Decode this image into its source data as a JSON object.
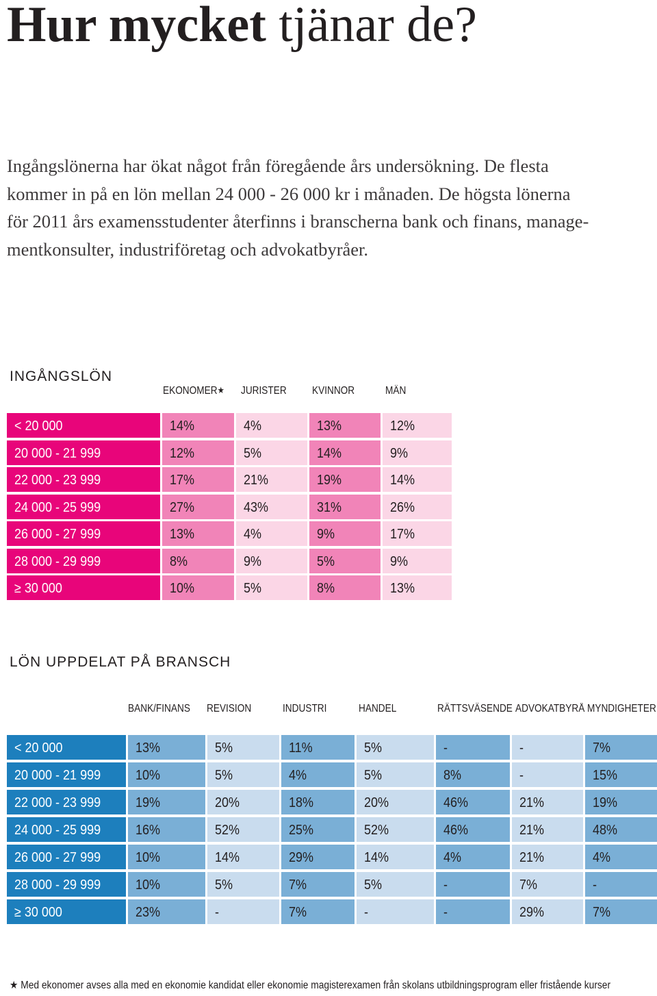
{
  "title": {
    "bold": "Hur mycket",
    "rest": " tjänar de?"
  },
  "intro": {
    "lines": [
      "Ingångslönerna har ökat något från föregående års undersökning. De flesta",
      "kommer in på en lön mellan 24 000 - 26 000 kr i månaden. De högsta lönerna",
      "för 2011 års examensstudenter återfinns i branscherna bank och finans, manage-",
      "mentkonsulter, industriföretag och advokatbyråer."
    ]
  },
  "table1": {
    "title": "INGÅNGSLÖN",
    "headers": [
      "EKONOMER",
      "JURISTER",
      "KVINNOR",
      "MÄN"
    ],
    "header_star": "★",
    "rows": [
      {
        "label": "< 20 000",
        "values": [
          "14%",
          "4%",
          "13%",
          "12%"
        ]
      },
      {
        "label": "20 000 - 21 999",
        "values": [
          "12%",
          "5%",
          "14%",
          "9%"
        ]
      },
      {
        "label": "22 000 - 23 999",
        "values": [
          "17%",
          "21%",
          "19%",
          "14%"
        ]
      },
      {
        "label": "24 000 - 25 999",
        "values": [
          "27%",
          "43%",
          "31%",
          "26%"
        ]
      },
      {
        "label": "26 000 - 27 999",
        "values": [
          "13%",
          "4%",
          "9%",
          "17%"
        ]
      },
      {
        "label": "28 000 - 29 999",
        "values": [
          "8%",
          "9%",
          "5%",
          "9%"
        ]
      },
      {
        "label": "≥ 30 000",
        "values": [
          "10%",
          "5%",
          "8%",
          "13%"
        ]
      }
    ],
    "colors": {
      "label": "#e8057a",
      "dark": "#f184b8",
      "light": "#fbd6e6"
    }
  },
  "table2": {
    "title": "LÖN UPPDELAT PÅ BRANSCH",
    "headers": [
      "BANK/FINANS",
      "REVISION",
      "INDUSTRI",
      "HANDEL",
      "RÄTTSVÄSENDE",
      "ADVOKATBYRÅ",
      "MYNDIGHETER"
    ],
    "rows": [
      {
        "label": "< 20 000",
        "values": [
          "13%",
          "5%",
          "11%",
          "5%",
          "-",
          "-",
          "7%"
        ]
      },
      {
        "label": "20 000 - 21 999",
        "values": [
          "10%",
          "5%",
          "4%",
          "5%",
          "8%",
          "-",
          "15%"
        ]
      },
      {
        "label": "22 000 - 23 999",
        "values": [
          "19%",
          "20%",
          "18%",
          "20%",
          "46%",
          "21%",
          "19%"
        ]
      },
      {
        "label": "24 000 - 25 999",
        "values": [
          "16%",
          "52%",
          "25%",
          "52%",
          "46%",
          "21%",
          "48%"
        ]
      },
      {
        "label": "26 000 - 27 999",
        "values": [
          "10%",
          "14%",
          "29%",
          "14%",
          "4%",
          "21%",
          "4%"
        ]
      },
      {
        "label": "28 000 - 29 999",
        "values": [
          "10%",
          "5%",
          "7%",
          "5%",
          "-",
          "7%",
          "-"
        ]
      },
      {
        "label": "≥ 30 000",
        "values": [
          "23%",
          "-",
          "7%",
          "-",
          "-",
          "29%",
          "7%"
        ]
      }
    ],
    "colors": {
      "label": "#1d7fbd",
      "dark": "#7aafd6",
      "light": "#c9dcee"
    }
  },
  "footnote": {
    "star": "★",
    "text": " Med ekonomer avses alla med en ekonomie kandidat eller ekonomie magisterexamen från skolans utbildningsprogram eller fristående kurser"
  }
}
